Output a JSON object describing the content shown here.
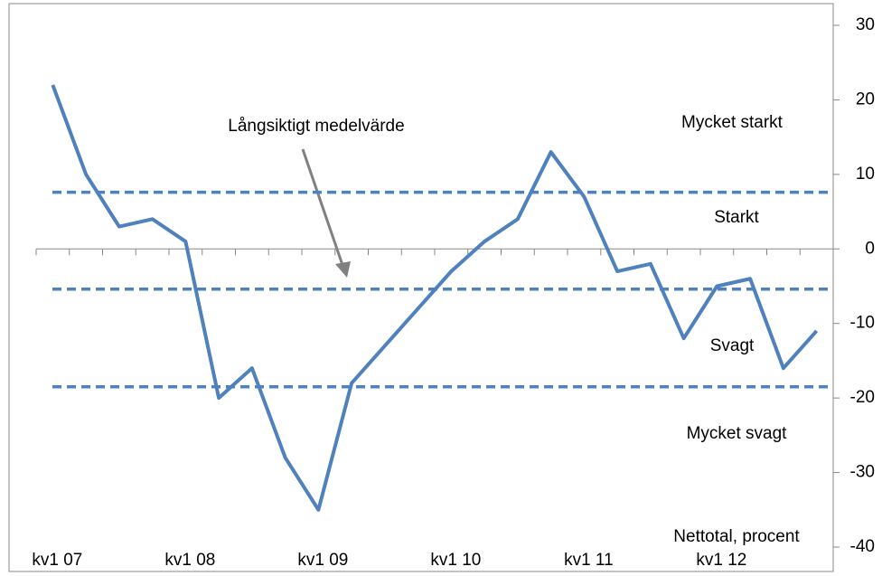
{
  "chart_data": {
    "type": "line",
    "categories": [
      "kv1 07",
      null,
      null,
      null,
      "kv1 08",
      null,
      null,
      null,
      "kv1 09",
      null,
      null,
      null,
      "kv1 10",
      null,
      null,
      null,
      "kv1 11",
      null,
      null,
      null,
      "kv1 12",
      null,
      null,
      null
    ],
    "series": [
      {
        "name": "Nettotal, procent",
        "color": "#4f81bd",
        "values": [
          22,
          10,
          3,
          4,
          1,
          -20,
          -16,
          -28,
          -35,
          -18,
          -13,
          -8,
          -3,
          1,
          4,
          13,
          7,
          -3,
          -2,
          -12,
          -5,
          -4,
          -16,
          -11
        ]
      }
    ],
    "reference_lines": {
      "color": "#4f81bd",
      "values": [
        7.6,
        -5.4,
        -18.5
      ]
    },
    "ylim": [
      -40,
      30
    ],
    "yticks": [
      -40,
      -30,
      -20,
      -10,
      0,
      10,
      20,
      30
    ],
    "y_axis_side": "right",
    "annotations": [
      "Långsiktigt medelvärde",
      "Mycket starkt",
      "Starkt",
      "Svagt",
      "Mycket svagt"
    ]
  }
}
